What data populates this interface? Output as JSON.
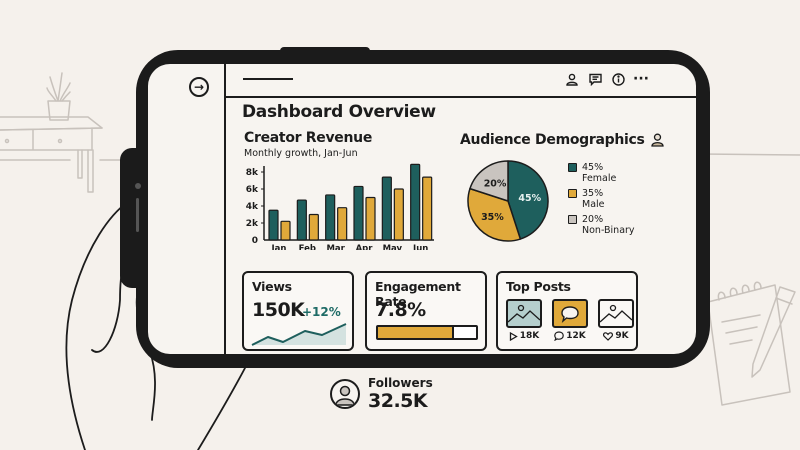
{
  "colors": {
    "teal": "#1e5f5d",
    "gold": "#e0a93a",
    "gray": "#c9c4bf",
    "ink": "#1c1c1c",
    "paper": "#f7f4f0",
    "light_teal": "#b5cfcd"
  },
  "header": {
    "nav_icon": "arrow-right-circle-icon",
    "icons": [
      "user-icon",
      "comment-icon",
      "info-icon",
      "more-icon"
    ],
    "more_glyph": "···"
  },
  "page": {
    "title": "Dashboard Overview"
  },
  "revenue": {
    "title": "Creator Revenue",
    "subtitle": "Monthly growth, Jan-Jun"
  },
  "demographics": {
    "title": "Audience Demographics",
    "legend": [
      {
        "pct": "45%",
        "label": "Female",
        "color": "#1e5f5d"
      },
      {
        "pct": "35%",
        "label": "Male",
        "color": "#e0a93a"
      },
      {
        "pct": "20%",
        "label": "Non-Binary",
        "color": "#c9c4bf"
      }
    ]
  },
  "views": {
    "title": "Views",
    "value": "150K",
    "delta": "+12%"
  },
  "engagement": {
    "title": "Engagement Rate",
    "value": "7.8%",
    "progress_pct": 78
  },
  "top_posts": {
    "title": "Top Posts",
    "posts": [
      {
        "type": "image",
        "stat_icon": "play-icon",
        "stat": "18K"
      },
      {
        "type": "comment",
        "stat_icon": "comment-icon",
        "stat": "12K"
      },
      {
        "type": "image",
        "stat_icon": "heart-icon",
        "stat": "9K"
      }
    ]
  },
  "followers": {
    "label": "Followers",
    "value": "32.5K"
  },
  "chart_data": [
    {
      "type": "bar",
      "title": "Creator Revenue",
      "subtitle": "Monthly growth, Jan-Jun",
      "categories": [
        "Jan",
        "Feb",
        "Mar",
        "Apr",
        "May",
        "Jun"
      ],
      "series": [
        {
          "name": "Series A (teal)",
          "color": "#1e5f5d",
          "values": [
            3500,
            4700,
            5300,
            6300,
            7400,
            8900
          ]
        },
        {
          "name": "Series B (gold)",
          "color": "#e0a93a",
          "values": [
            2200,
            3000,
            3800,
            5000,
            6000,
            7400
          ]
        }
      ],
      "yticks": [
        "0",
        "2k",
        "4k",
        "6k",
        "8k"
      ],
      "ylim": [
        0,
        9000
      ],
      "xlabel": "",
      "ylabel": "",
      "grid": false,
      "legend": "none"
    },
    {
      "type": "pie",
      "title": "Audience Demographics",
      "categories": [
        "Female",
        "Male",
        "Non-Binary"
      ],
      "values": [
        45,
        35,
        20
      ],
      "labels": [
        "45%",
        "35%",
        "20%"
      ],
      "legend": "right"
    },
    {
      "type": "line",
      "title": "Views",
      "values": [
        2,
        5,
        3,
        7,
        6,
        10
      ],
      "annotation": "+12%"
    }
  ]
}
